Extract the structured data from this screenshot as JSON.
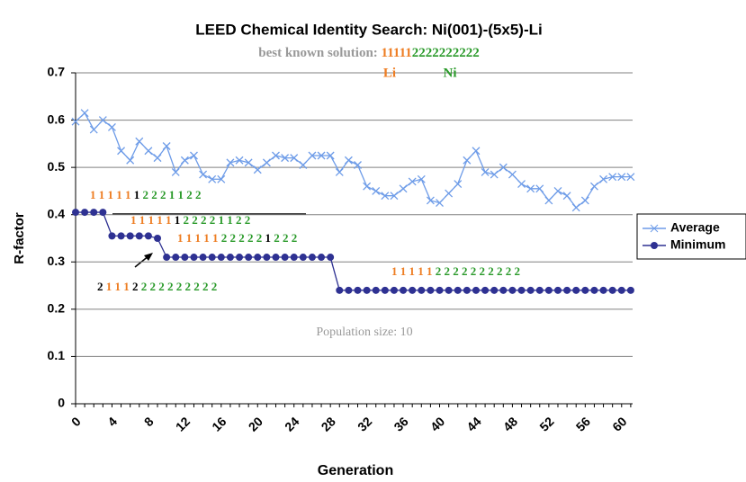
{
  "chart_data": {
    "type": "line",
    "title": "LEED Chemical Identity Search: Ni(001)-(5x5)-Li",
    "subtitle": [
      {
        "text": "best known solution: ",
        "color": "#999999"
      },
      {
        "text": "11111",
        "color": "#ee7d22"
      },
      {
        "text": "2222222222",
        "color": "#2a9a2a"
      }
    ],
    "element_labels": [
      {
        "text": "Li",
        "color": "#ee7d22"
      },
      {
        "text": "Ni",
        "color": "#2a9a2a"
      }
    ],
    "x_label": "Generation",
    "y_label": "R-factor",
    "note": "Population size: 10",
    "annotations": [
      [
        {
          "text": "1 1 1 1 1 ",
          "color": "#ee7d22"
        },
        {
          "text": "1 ",
          "color": "#000000"
        },
        {
          "text": "2 2 2 1 1 2 2",
          "color": "#2a9a2a"
        }
      ],
      [
        {
          "text": "1 1 1 1 1 ",
          "color": "#ee7d22"
        },
        {
          "text": "1 ",
          "color": "#000000"
        },
        {
          "text": "2 2 2 2 1 1 2 2",
          "color": "#2a9a2a"
        }
      ],
      [
        {
          "text": "1 1 1 1 1 ",
          "color": "#ee7d22"
        },
        {
          "text": "2 2 2 2 2 ",
          "color": "#2a9a2a"
        },
        {
          "text": "1 ",
          "color": "#000000"
        },
        {
          "text": "2 2 2",
          "color": "#2a9a2a"
        }
      ],
      [
        {
          "text": "2 ",
          "color": "#000000"
        },
        {
          "text": "1 1 1 ",
          "color": "#ee7d22"
        },
        {
          "text": "2 ",
          "color": "#000000"
        },
        {
          "text": "2 2 2 2 2 2 2 2 2",
          "color": "#2a9a2a"
        }
      ],
      [
        {
          "text": "1 1 1 1 1 ",
          "color": "#ee7d22"
        },
        {
          "text": "2 2 2 2 2 2 2 2 2 2",
          "color": "#2a9a2a"
        }
      ]
    ],
    "x": [
      0,
      1,
      2,
      3,
      4,
      5,
      6,
      7,
      8,
      9,
      10,
      11,
      12,
      13,
      14,
      15,
      16,
      17,
      18,
      19,
      20,
      21,
      22,
      23,
      24,
      25,
      26,
      27,
      28,
      29,
      30,
      31,
      32,
      33,
      34,
      35,
      36,
      37,
      38,
      39,
      40,
      41,
      42,
      43,
      44,
      45,
      46,
      47,
      48,
      49,
      50,
      51,
      52,
      53,
      54,
      55,
      56,
      57,
      58,
      59,
      60,
      61
    ],
    "series": [
      {
        "name": "Average",
        "color": "#6e9ce8",
        "marker": "x",
        "values": [
          0.597,
          0.615,
          0.58,
          0.6,
          0.585,
          0.535,
          0.515,
          0.555,
          0.535,
          0.52,
          0.545,
          0.49,
          0.515,
          0.525,
          0.485,
          0.475,
          0.475,
          0.51,
          0.515,
          0.51,
          0.495,
          0.51,
          0.525,
          0.52,
          0.52,
          0.505,
          0.525,
          0.525,
          0.525,
          0.49,
          0.515,
          0.505,
          0.46,
          0.45,
          0.44,
          0.44,
          0.455,
          0.47,
          0.475,
          0.43,
          0.425,
          0.445,
          0.465,
          0.515,
          0.535,
          0.49,
          0.485,
          0.5,
          0.485,
          0.465,
          0.455,
          0.455,
          0.43,
          0.45,
          0.44,
          0.415,
          0.43,
          0.46,
          0.475,
          0.48,
          0.48,
          0.48
        ]
      },
      {
        "name": "Minimum",
        "color": "#2e3192",
        "marker": "circle",
        "values": [
          0.405,
          0.405,
          0.405,
          0.405,
          0.355,
          0.355,
          0.355,
          0.355,
          0.355,
          0.35,
          0.31,
          0.31,
          0.31,
          0.31,
          0.31,
          0.31,
          0.31,
          0.31,
          0.31,
          0.31,
          0.31,
          0.31,
          0.31,
          0.31,
          0.31,
          0.31,
          0.31,
          0.31,
          0.31,
          0.24,
          0.24,
          0.24,
          0.24,
          0.24,
          0.24,
          0.24,
          0.24,
          0.24,
          0.24,
          0.24,
          0.24,
          0.24,
          0.24,
          0.24,
          0.24,
          0.24,
          0.24,
          0.24,
          0.24,
          0.24,
          0.24,
          0.24,
          0.24,
          0.24,
          0.24,
          0.24,
          0.24,
          0.24,
          0.24,
          0.24,
          0.24,
          0.24
        ]
      }
    ],
    "xlim": [
      0,
      62
    ],
    "xticks": [
      0,
      4,
      8,
      12,
      16,
      20,
      24,
      28,
      32,
      36,
      40,
      44,
      48,
      52,
      56,
      60
    ],
    "ylim": [
      0,
      0.7
    ],
    "yticks": [
      0,
      0.1,
      0.2,
      0.3,
      0.4,
      0.5,
      0.6,
      0.7
    ],
    "grid": true,
    "legend": "right"
  }
}
